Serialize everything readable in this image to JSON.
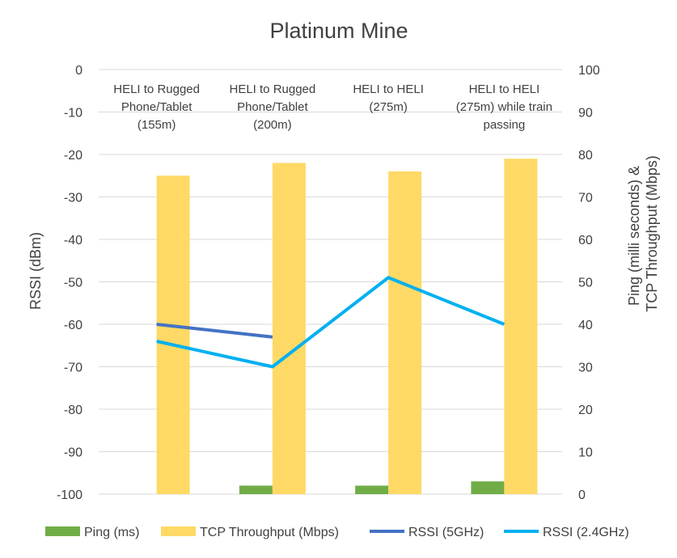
{
  "chart_data": {
    "type": "bar",
    "title": "Platinum Mine",
    "categories": [
      [
        "HELI to Rugged",
        "Phone/Tablet",
        "(155m)"
      ],
      [
        "HELI to Rugged",
        "Phone/Tablet",
        "(200m)"
      ],
      [
        "HELI to HELI",
        "(275m)"
      ],
      [
        "HELI to HELI",
        "(275m) while train",
        "passing"
      ]
    ],
    "y_left": {
      "label": "RSSI (dBm)",
      "range": [
        -100,
        0
      ],
      "ticks": [
        0,
        -10,
        -20,
        -30,
        -40,
        -50,
        -60,
        -70,
        -80,
        -90,
        -100
      ]
    },
    "y_right": {
      "label_lines": [
        "Ping (milli seconds) &",
        "TCP Throughput (Mbps)"
      ],
      "range": [
        0,
        100
      ],
      "ticks": [
        100,
        90,
        80,
        70,
        60,
        50,
        40,
        30,
        20,
        10,
        0
      ]
    },
    "grid": true,
    "legend_position": "bottom",
    "series": [
      {
        "name": "Ping (ms)",
        "kind": "bar",
        "axis": "right",
        "color": "#70ad47",
        "values": [
          0,
          2,
          2,
          3
        ]
      },
      {
        "name": "TCP Throughput (Mbps)",
        "kind": "bar",
        "axis": "right",
        "color": "#ffd966",
        "values": [
          75,
          78,
          76,
          79
        ]
      },
      {
        "name": "RSSI (5GHz)",
        "kind": "line",
        "axis": "left",
        "color": "#4472c4",
        "values": [
          -60,
          -63,
          null,
          null
        ]
      },
      {
        "name": "RSSI (2.4GHz)",
        "kind": "line",
        "axis": "left",
        "color": "#00b0f0",
        "values": [
          -64,
          -70,
          -49,
          -60
        ]
      }
    ]
  }
}
